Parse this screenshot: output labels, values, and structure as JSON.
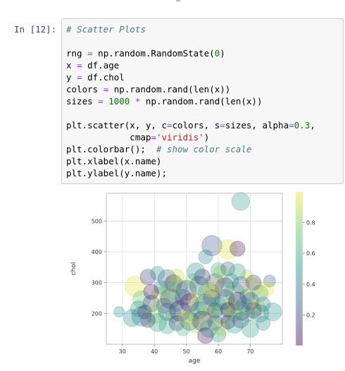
{
  "cell": {
    "prompt": "In [12]:",
    "code_lines": [
      [
        {
          "t": "# Scatter Plots",
          "c": "cm"
        }
      ],
      [
        {
          "t": "",
          "c": ""
        }
      ],
      [
        {
          "t": "rng ",
          "c": ""
        },
        {
          "t": "=",
          "c": "o"
        },
        {
          "t": " np.random.RandomState(",
          "c": ""
        },
        {
          "t": "0",
          "c": "mi"
        },
        {
          "t": ")",
          "c": ""
        }
      ],
      [
        {
          "t": "x ",
          "c": ""
        },
        {
          "t": "=",
          "c": "o"
        },
        {
          "t": " df.age",
          "c": ""
        }
      ],
      [
        {
          "t": "y ",
          "c": ""
        },
        {
          "t": "=",
          "c": "o"
        },
        {
          "t": " df.chol",
          "c": ""
        }
      ],
      [
        {
          "t": "colors ",
          "c": ""
        },
        {
          "t": "=",
          "c": "o"
        },
        {
          "t": " np.random.rand(len(x))",
          "c": ""
        }
      ],
      [
        {
          "t": "sizes ",
          "c": ""
        },
        {
          "t": "=",
          "c": "o"
        },
        {
          "t": " ",
          "c": ""
        },
        {
          "t": "1000",
          "c": "mi"
        },
        {
          "t": " ",
          "c": ""
        },
        {
          "t": "*",
          "c": "o"
        },
        {
          "t": " np.random.rand(len(x))",
          "c": ""
        }
      ],
      [
        {
          "t": "",
          "c": ""
        }
      ],
      [
        {
          "t": "plt.scatter(x, y, c",
          "c": ""
        },
        {
          "t": "=",
          "c": "o"
        },
        {
          "t": "colors, s",
          "c": ""
        },
        {
          "t": "=",
          "c": "o"
        },
        {
          "t": "sizes, alpha",
          "c": ""
        },
        {
          "t": "=",
          "c": "o"
        },
        {
          "t": "0.3",
          "c": "mi"
        },
        {
          "t": ",",
          "c": ""
        }
      ],
      [
        {
          "t": "            cmap",
          "c": ""
        },
        {
          "t": "=",
          "c": "o"
        },
        {
          "t": "'viridis'",
          "c": "s"
        },
        {
          "t": ")",
          "c": ""
        }
      ],
      [
        {
          "t": "plt.colorbar();  ",
          "c": ""
        },
        {
          "t": "# show color scale",
          "c": "cm"
        }
      ],
      [
        {
          "t": "plt.xlabel(x.name)",
          "c": ""
        }
      ],
      [
        {
          "t": "plt.ylabel(y.name);",
          "c": ""
        }
      ]
    ]
  },
  "chart_data": {
    "type": "scatter",
    "xlabel": "age",
    "ylabel": "chol",
    "xlim": [
      25,
      80
    ],
    "ylim": [
      100,
      590
    ],
    "x_ticks": [
      30,
      40,
      50,
      60,
      70
    ],
    "y_ticks": [
      200,
      300,
      400,
      500
    ],
    "grid": true,
    "colorbar": {
      "ticks": [
        0.2,
        0.4,
        0.6,
        0.8
      ],
      "range": [
        0.0,
        1.0
      ],
      "cmap": "viridis",
      "position": "right"
    },
    "colormap_stops": [
      "#440154",
      "#3b528b",
      "#21918c",
      "#5ec962",
      "#fde725"
    ],
    "alpha": 0.3,
    "points": [
      {
        "x": 67,
        "y": 564,
        "c": 0.55,
        "s": 420
      },
      {
        "x": 58,
        "y": 420,
        "c": 0.25,
        "s": 540
      },
      {
        "x": 63,
        "y": 408,
        "c": 0.95,
        "s": 500
      },
      {
        "x": 66,
        "y": 410,
        "c": 0.05,
        "s": 300
      },
      {
        "x": 56,
        "y": 384,
        "c": 0.45,
        "s": 260
      },
      {
        "x": 69,
        "y": 322,
        "c": 0.9,
        "s": 180
      },
      {
        "x": 76,
        "y": 305,
        "c": 0.3,
        "s": 190
      },
      {
        "x": 34,
        "y": 288,
        "c": 0.95,
        "s": 560
      },
      {
        "x": 38,
        "y": 318,
        "c": 0.15,
        "s": 320
      },
      {
        "x": 41,
        "y": 330,
        "c": 0.5,
        "s": 260
      },
      {
        "x": 44,
        "y": 312,
        "c": 0.35,
        "s": 450
      },
      {
        "x": 46,
        "y": 298,
        "c": 0.05,
        "s": 380
      },
      {
        "x": 48,
        "y": 285,
        "c": 0.65,
        "s": 300
      },
      {
        "x": 50,
        "y": 275,
        "c": 0.2,
        "s": 520
      },
      {
        "x": 52,
        "y": 305,
        "c": 0.8,
        "s": 280
      },
      {
        "x": 54,
        "y": 290,
        "c": 0.4,
        "s": 470
      },
      {
        "x": 55,
        "y": 318,
        "c": 0.1,
        "s": 330
      },
      {
        "x": 57,
        "y": 265,
        "c": 0.6,
        "s": 610
      },
      {
        "x": 59,
        "y": 300,
        "c": 0.3,
        "s": 420
      },
      {
        "x": 61,
        "y": 330,
        "c": 0.9,
        "s": 350
      },
      {
        "x": 62,
        "y": 285,
        "c": 0.15,
        "s": 460
      },
      {
        "x": 64,
        "y": 305,
        "c": 0.5,
        "s": 300
      },
      {
        "x": 65,
        "y": 268,
        "c": 0.75,
        "s": 520
      },
      {
        "x": 67,
        "y": 292,
        "c": 0.25,
        "s": 380
      },
      {
        "x": 69,
        "y": 255,
        "c": 0.45,
        "s": 290
      },
      {
        "x": 71,
        "y": 285,
        "c": 0.95,
        "s": 460
      },
      {
        "x": 73,
        "y": 265,
        "c": 0.55,
        "s": 350
      },
      {
        "x": 36,
        "y": 245,
        "c": 0.7,
        "s": 410
      },
      {
        "x": 39,
        "y": 232,
        "c": 0.2,
        "s": 360
      },
      {
        "x": 42,
        "y": 255,
        "c": 0.85,
        "s": 480
      },
      {
        "x": 43,
        "y": 225,
        "c": 0.4,
        "s": 300
      },
      {
        "x": 45,
        "y": 248,
        "c": 0.1,
        "s": 520
      },
      {
        "x": 47,
        "y": 230,
        "c": 0.6,
        "s": 260
      },
      {
        "x": 49,
        "y": 252,
        "c": 0.3,
        "s": 340
      },
      {
        "x": 51,
        "y": 235,
        "c": 0.05,
        "s": 450
      },
      {
        "x": 53,
        "y": 248,
        "c": 0.9,
        "s": 290
      },
      {
        "x": 56,
        "y": 228,
        "c": 0.45,
        "s": 600
      },
      {
        "x": 58,
        "y": 250,
        "c": 0.15,
        "s": 370
      },
      {
        "x": 60,
        "y": 232,
        "c": 0.7,
        "s": 280
      },
      {
        "x": 62,
        "y": 245,
        "c": 0.35,
        "s": 510
      },
      {
        "x": 64,
        "y": 225,
        "c": 0.85,
        "s": 330
      },
      {
        "x": 66,
        "y": 240,
        "c": 0.05,
        "s": 420
      },
      {
        "x": 68,
        "y": 228,
        "c": 0.55,
        "s": 300
      },
      {
        "x": 70,
        "y": 240,
        "c": 0.25,
        "s": 390
      },
      {
        "x": 72,
        "y": 220,
        "c": 0.95,
        "s": 360
      },
      {
        "x": 74,
        "y": 230,
        "c": 0.45,
        "s": 280
      },
      {
        "x": 35,
        "y": 215,
        "c": 0.5,
        "s": 330
      },
      {
        "x": 37,
        "y": 205,
        "c": 0.05,
        "s": 250
      },
      {
        "x": 40,
        "y": 198,
        "c": 0.8,
        "s": 470
      },
      {
        "x": 44,
        "y": 205,
        "c": 0.3,
        "s": 400
      },
      {
        "x": 46,
        "y": 195,
        "c": 0.65,
        "s": 320
      },
      {
        "x": 48,
        "y": 208,
        "c": 0.1,
        "s": 560
      },
      {
        "x": 52,
        "y": 200,
        "c": 0.75,
        "s": 300
      },
      {
        "x": 54,
        "y": 210,
        "c": 0.4,
        "s": 380
      },
      {
        "x": 57,
        "y": 198,
        "c": 0.9,
        "s": 440
      },
      {
        "x": 59,
        "y": 210,
        "c": 0.2,
        "s": 300
      },
      {
        "x": 61,
        "y": 200,
        "c": 0.6,
        "s": 520
      },
      {
        "x": 63,
        "y": 212,
        "c": 0.05,
        "s": 280
      },
      {
        "x": 65,
        "y": 200,
        "c": 0.85,
        "s": 350
      },
      {
        "x": 67,
        "y": 208,
        "c": 0.35,
        "s": 460
      },
      {
        "x": 69,
        "y": 198,
        "c": 0.7,
        "s": 290
      },
      {
        "x": 71,
        "y": 210,
        "c": 0.15,
        "s": 330
      },
      {
        "x": 73,
        "y": 200,
        "c": 0.5,
        "s": 410
      },
      {
        "x": 29,
        "y": 205,
        "c": 0.5,
        "s": 150
      },
      {
        "x": 33,
        "y": 185,
        "c": 0.45,
        "s": 380
      },
      {
        "x": 38,
        "y": 178,
        "c": 0.1,
        "s": 280
      },
      {
        "x": 41,
        "y": 170,
        "c": 0.55,
        "s": 420
      },
      {
        "x": 44,
        "y": 160,
        "c": 0.6,
        "s": 340
      },
      {
        "x": 47,
        "y": 168,
        "c": 0.2,
        "s": 300
      },
      {
        "x": 49,
        "y": 150,
        "c": 0.65,
        "s": 260
      },
      {
        "x": 51,
        "y": 175,
        "c": 0.35,
        "s": 450
      },
      {
        "x": 53,
        "y": 162,
        "c": 0.85,
        "s": 310
      },
      {
        "x": 55,
        "y": 175,
        "c": 0.15,
        "s": 520
      },
      {
        "x": 57,
        "y": 150,
        "c": 0.6,
        "s": 380
      },
      {
        "x": 59,
        "y": 170,
        "c": 0.3,
        "s": 290
      },
      {
        "x": 61,
        "y": 155,
        "c": 0.9,
        "s": 350
      },
      {
        "x": 63,
        "y": 172,
        "c": 0.05,
        "s": 260
      },
      {
        "x": 65,
        "y": 165,
        "c": 0.5,
        "s": 420
      },
      {
        "x": 67,
        "y": 178,
        "c": 0.25,
        "s": 330
      },
      {
        "x": 70,
        "y": 150,
        "c": 0.55,
        "s": 380
      },
      {
        "x": 74,
        "y": 168,
        "c": 0.45,
        "s": 260
      },
      {
        "x": 56,
        "y": 128,
        "c": 0.05,
        "s": 330
      },
      {
        "x": 60,
        "y": 132,
        "c": 0.55,
        "s": 300
      },
      {
        "x": 77,
        "y": 205,
        "c": 0.5,
        "s": 420
      },
      {
        "x": 75,
        "y": 280,
        "c": 0.95,
        "s": 320
      },
      {
        "x": 42,
        "y": 285,
        "c": 0.4,
        "s": 240
      },
      {
        "x": 47,
        "y": 320,
        "c": 0.9,
        "s": 280
      },
      {
        "x": 53,
        "y": 335,
        "c": 0.45,
        "s": 420
      },
      {
        "x": 60,
        "y": 340,
        "c": 0.6,
        "s": 300
      },
      {
        "x": 39,
        "y": 270,
        "c": 0.05,
        "s": 300
      },
      {
        "x": 63,
        "y": 345,
        "c": 0.35,
        "s": 260
      },
      {
        "x": 45,
        "y": 275,
        "c": 0.75,
        "s": 400
      },
      {
        "x": 58,
        "y": 280,
        "c": 0.95,
        "s": 380
      },
      {
        "x": 66,
        "y": 335,
        "c": 0.55,
        "s": 340
      },
      {
        "x": 71,
        "y": 300,
        "c": 0.2,
        "s": 300
      },
      {
        "x": 36,
        "y": 190,
        "c": 0.4,
        "s": 500
      },
      {
        "x": 50,
        "y": 185,
        "c": 0.9,
        "s": 280
      }
    ]
  }
}
